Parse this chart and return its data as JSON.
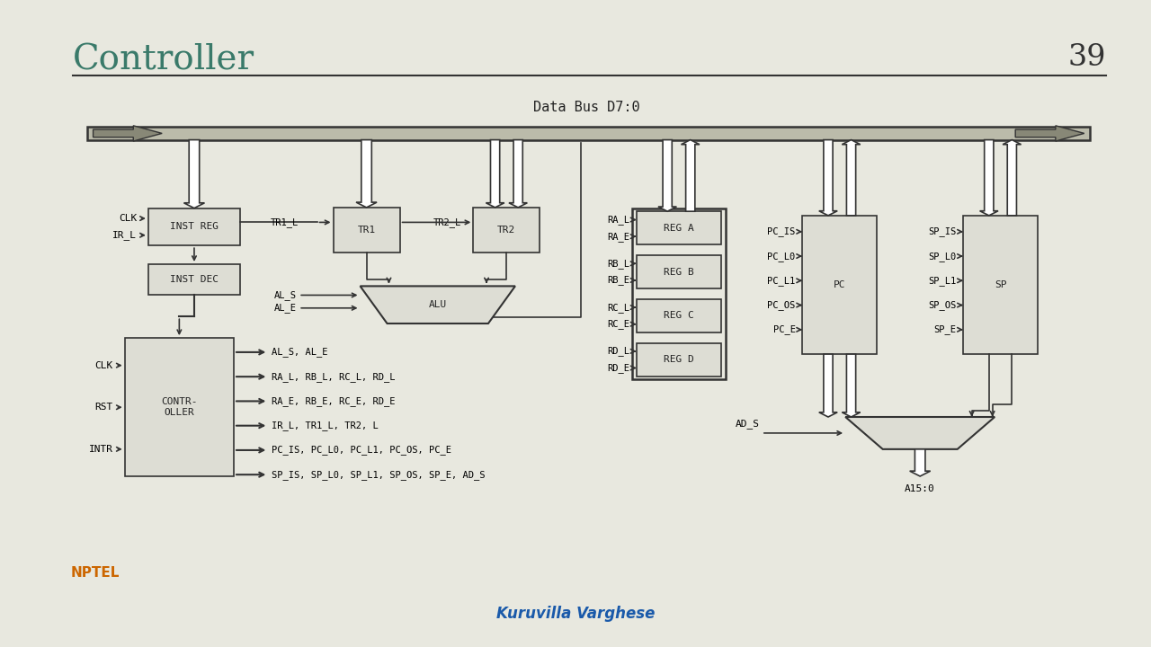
{
  "title": "Controller",
  "page_number": "39",
  "bg_color": "#e8e8df",
  "box_color": "#ddddd4",
  "box_edge": "#333333",
  "line_color": "#333333",
  "title_color": "#3a7a6a",
  "author": "Kuruvilla Varghese",
  "author_color": "#1a5aaa",
  "data_bus_label": "Data Bus D7:0",
  "label_step": 0.038
}
